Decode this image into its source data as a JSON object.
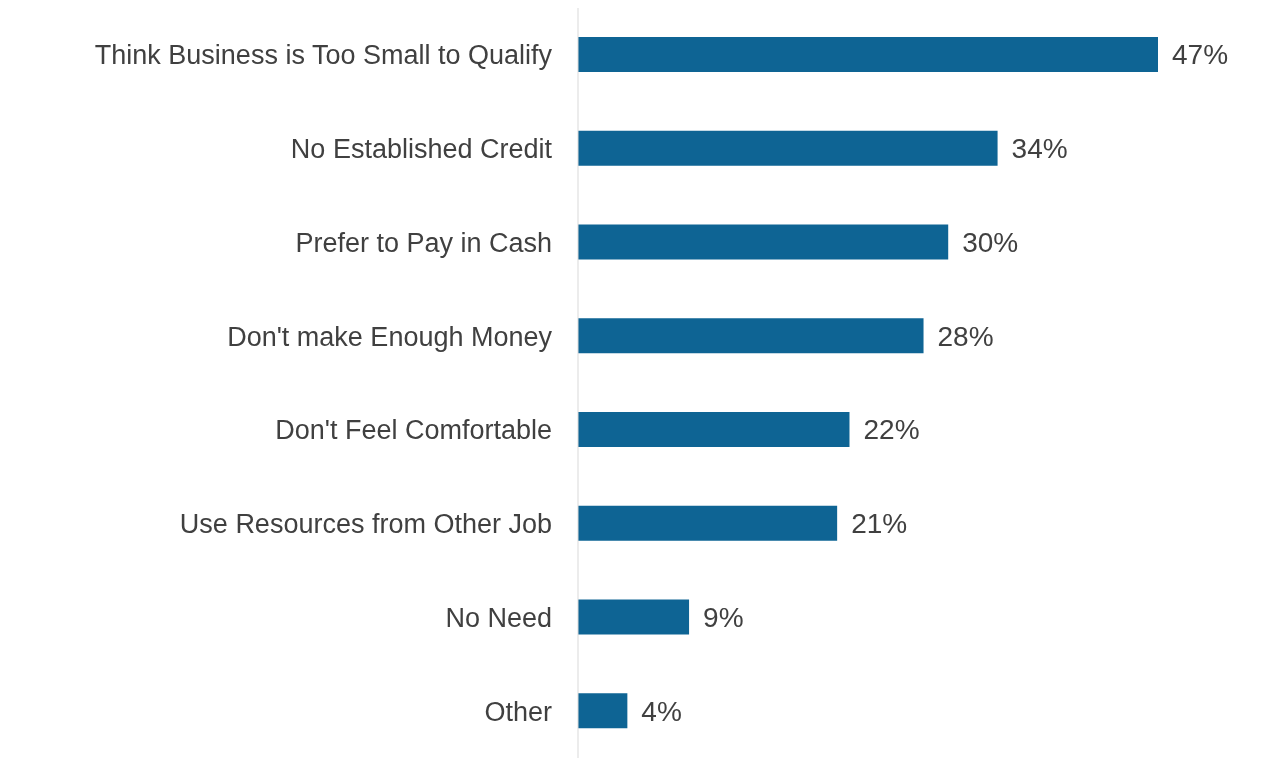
{
  "chart_data": {
    "type": "bar",
    "orientation": "horizontal",
    "categories": [
      "Think Business is Too Small to Qualify",
      "No Established Credit",
      "Prefer to Pay in Cash",
      "Don't make Enough Money",
      "Don't Feel Comfortable",
      "Use Resources from Other Job",
      "No Need",
      "Other"
    ],
    "values": [
      47,
      34,
      30,
      28,
      22,
      21,
      9,
      4
    ],
    "value_labels": [
      "47%",
      "34%",
      "30%",
      "28%",
      "22%",
      "21%",
      "9%",
      "4%"
    ],
    "color": "#0e6494",
    "grid": false,
    "legend": false
  }
}
